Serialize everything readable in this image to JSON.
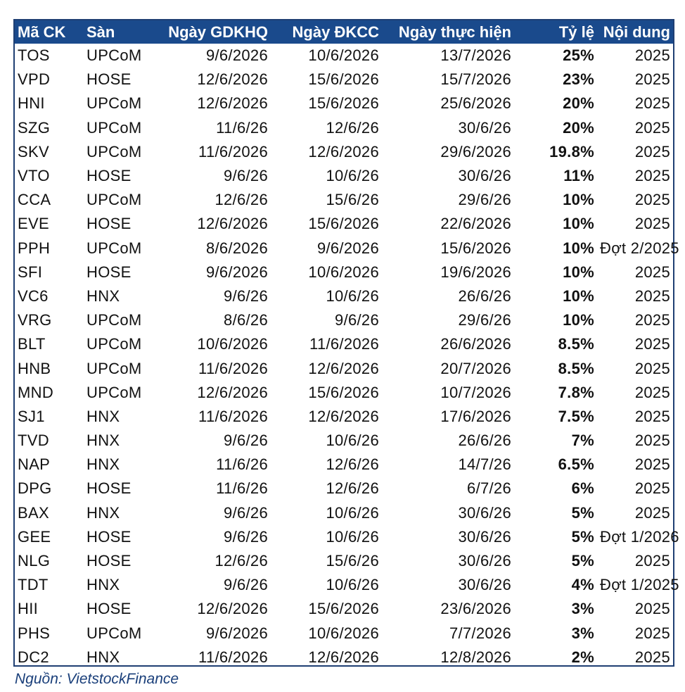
{
  "table": {
    "headers": [
      "Mã CK",
      "Sàn",
      "Ngày GDKHQ",
      "Ngày ĐKCC",
      "Ngày thực hiện",
      "Tỷ lệ",
      "Nội dung"
    ],
    "rows": [
      [
        "TOS",
        "UPCoM",
        "9/6/2026",
        "10/6/2026",
        "13/7/2026",
        "25%",
        "2025"
      ],
      [
        "VPD",
        "HOSE",
        "12/6/2026",
        "15/6/2026",
        "15/7/2026",
        "23%",
        "2025"
      ],
      [
        "HNI",
        "UPCoM",
        "12/6/2026",
        "15/6/2026",
        "25/6/2026",
        "20%",
        "2025"
      ],
      [
        "SZG",
        "UPCoM",
        "11/6/26",
        "12/6/26",
        "30/6/26",
        "20%",
        "2025"
      ],
      [
        "SKV",
        "UPCoM",
        "11/6/2026",
        "12/6/2026",
        "29/6/2026",
        "19.8%",
        "2025"
      ],
      [
        "VTO",
        "HOSE",
        "9/6/26",
        "10/6/26",
        "30/6/26",
        "11%",
        "2025"
      ],
      [
        "CCA",
        "UPCoM",
        "12/6/26",
        "15/6/26",
        "29/6/26",
        "10%",
        "2025"
      ],
      [
        "EVE",
        "HOSE",
        "12/6/2026",
        "15/6/2026",
        "22/6/2026",
        "10%",
        "2025"
      ],
      [
        "PPH",
        "UPCoM",
        "8/6/2026",
        "9/6/2026",
        "15/6/2026",
        "10%",
        "Đợt 2/2025"
      ],
      [
        "SFI",
        "HOSE",
        "9/6/2026",
        "10/6/2026",
        "19/6/2026",
        "10%",
        "2025"
      ],
      [
        "VC6",
        "HNX",
        "9/6/26",
        "10/6/26",
        "26/6/26",
        "10%",
        "2025"
      ],
      [
        "VRG",
        "UPCoM",
        "8/6/26",
        "9/6/26",
        "29/6/26",
        "10%",
        "2025"
      ],
      [
        "BLT",
        "UPCoM",
        "10/6/2026",
        "11/6/2026",
        "26/6/2026",
        "8.5%",
        "2025"
      ],
      [
        "HNB",
        "UPCoM",
        "11/6/2026",
        "12/6/2026",
        "20/7/2026",
        "8.5%",
        "2025"
      ],
      [
        "MND",
        "UPCoM",
        "12/6/2026",
        "15/6/2026",
        "10/7/2026",
        "7.8%",
        "2025"
      ],
      [
        "SJ1",
        "HNX",
        "11/6/2026",
        "12/6/2026",
        "17/6/2026",
        "7.5%",
        "2025"
      ],
      [
        "TVD",
        "HNX",
        "9/6/26",
        "10/6/26",
        "26/6/26",
        "7%",
        "2025"
      ],
      [
        "NAP",
        "HNX",
        "11/6/26",
        "12/6/26",
        "14/7/26",
        "6.5%",
        "2025"
      ],
      [
        "DPG",
        "HOSE",
        "11/6/26",
        "12/6/26",
        "6/7/26",
        "6%",
        "2025"
      ],
      [
        "BAX",
        "HNX",
        "9/6/26",
        "10/6/26",
        "30/6/26",
        "5%",
        "2025"
      ],
      [
        "GEE",
        "HOSE",
        "9/6/26",
        "10/6/26",
        "30/6/26",
        "5%",
        "Đợt 1/2026"
      ],
      [
        "NLG",
        "HOSE",
        "12/6/26",
        "15/6/26",
        "30/6/26",
        "5%",
        "2025"
      ],
      [
        "TDT",
        "HNX",
        "9/6/26",
        "10/6/26",
        "30/6/26",
        "4%",
        "Đợt 1/2025"
      ],
      [
        "HII",
        "HOSE",
        "12/6/2026",
        "15/6/2026",
        "23/6/2026",
        "3%",
        "2025"
      ],
      [
        "PHS",
        "UPCoM",
        "9/6/2026",
        "10/6/2026",
        "7/7/2026",
        "3%",
        "2025"
      ],
      [
        "DC2",
        "HNX",
        "11/6/2026",
        "12/6/2026",
        "12/8/2026",
        "2%",
        "2025"
      ]
    ]
  },
  "source": "Nguồn: VietstockFinance",
  "colors": {
    "header_bg": "#1a4a8c",
    "header_text": "#ffffff",
    "source_text": "#1a3f7a",
    "border": "#1f3f73"
  }
}
